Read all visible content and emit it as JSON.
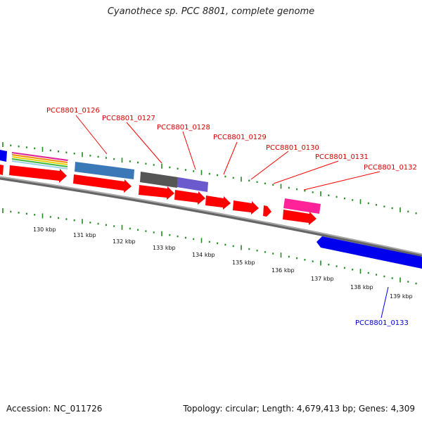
{
  "title": "Cyanothece sp. PCC 8801, complete genome",
  "footer": {
    "accession": "Accession: NC_011726",
    "summary": "Topology: circular; Length: 4,679,413 bp; Genes: 4,309"
  },
  "colors": {
    "forward_gene": "#ff0000",
    "reverse_gene": "#0000ee",
    "backbone": "#888888",
    "tick": "#228b22",
    "forward_label": "#d40000",
    "reverse_label": "#0000cc"
  },
  "scale_labels": [
    "130 kbp",
    "131 kbp",
    "132 kbp",
    "133 kbp",
    "134 kbp",
    "135 kbp",
    "136 kbp",
    "137 kbp",
    "138 kbp",
    "139 kbp"
  ],
  "gene_labels": [
    {
      "id": "PCC8801_0126",
      "strand": "forward"
    },
    {
      "id": "PCC8801_0127",
      "strand": "forward"
    },
    {
      "id": "PCC8801_0128",
      "strand": "forward"
    },
    {
      "id": "PCC8801_0129",
      "strand": "forward"
    },
    {
      "id": "PCC8801_0130",
      "strand": "forward"
    },
    {
      "id": "PCC8801_0131",
      "strand": "forward"
    },
    {
      "id": "PCC8801_0132",
      "strand": "forward"
    },
    {
      "id": "PCC8801_0133",
      "strand": "reverse"
    }
  ]
}
